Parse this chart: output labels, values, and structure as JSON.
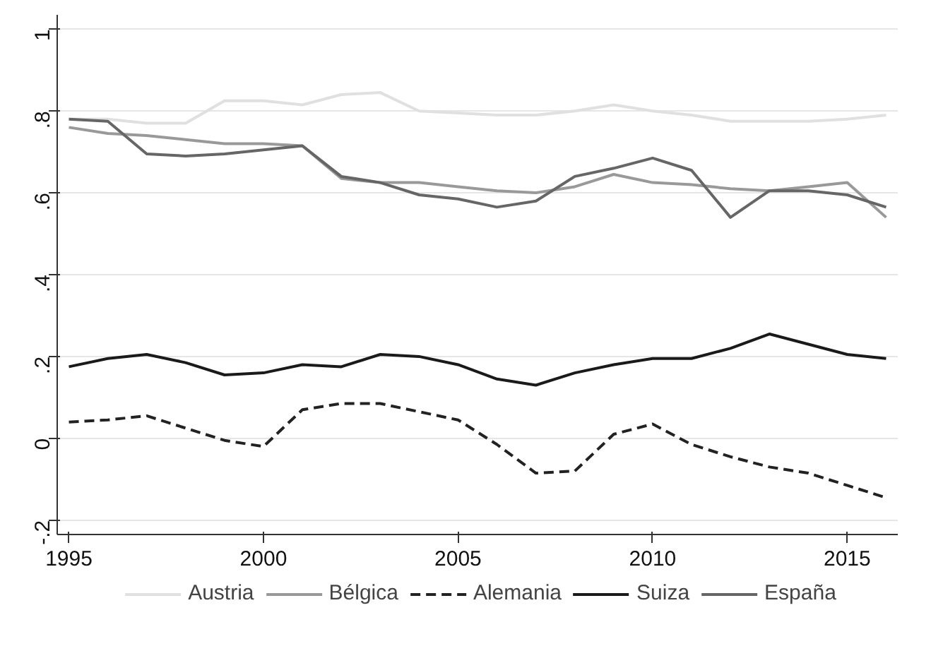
{
  "chart_data": {
    "type": "line",
    "x": [
      1995,
      1996,
      1997,
      1998,
      1999,
      2000,
      2001,
      2002,
      2003,
      2004,
      2005,
      2006,
      2007,
      2008,
      2009,
      2010,
      2011,
      2012,
      2013,
      2014,
      2015,
      2016
    ],
    "series": [
      {
        "name": "Austria",
        "color": "#e0e0e0",
        "line_style": "solid",
        "values": [
          0.78,
          0.78,
          0.77,
          0.77,
          0.825,
          0.825,
          0.815,
          0.84,
          0.845,
          0.8,
          0.795,
          0.79,
          0.79,
          0.8,
          0.815,
          0.8,
          0.79,
          0.775,
          0.775,
          0.775,
          0.78,
          0.79
        ]
      },
      {
        "name": "Bélgica",
        "color": "#999999",
        "line_style": "solid",
        "values": [
          0.76,
          0.745,
          0.74,
          0.73,
          0.72,
          0.72,
          0.715,
          0.635,
          0.625,
          0.625,
          0.615,
          0.605,
          0.6,
          0.615,
          0.645,
          0.625,
          0.62,
          0.61,
          0.605,
          0.615,
          0.625,
          0.54
        ]
      },
      {
        "name": "Alemania",
        "color": "#222222",
        "line_style": "dashed",
        "values": [
          0.04,
          0.045,
          0.055,
          0.025,
          -0.005,
          -0.02,
          0.07,
          0.085,
          0.085,
          0.065,
          0.045,
          -0.015,
          -0.085,
          -0.08,
          0.01,
          0.035,
          -0.015,
          -0.045,
          -0.07,
          -0.085,
          -0.115,
          -0.145
        ]
      },
      {
        "name": "Suiza",
        "color": "#1a1a1a",
        "line_style": "solid",
        "values": [
          0.175,
          0.195,
          0.205,
          0.185,
          0.155,
          0.16,
          0.18,
          0.175,
          0.205,
          0.2,
          0.18,
          0.145,
          0.13,
          0.16,
          0.18,
          0.195,
          0.195,
          0.22,
          0.255,
          0.23,
          0.205,
          0.195
        ]
      },
      {
        "name": "España",
        "color": "#666666",
        "line_style": "solid",
        "values": [
          0.78,
          0.775,
          0.695,
          0.69,
          0.695,
          0.705,
          0.715,
          0.64,
          0.625,
          0.595,
          0.585,
          0.565,
          0.58,
          0.64,
          0.66,
          0.685,
          0.655,
          0.54,
          0.605,
          0.605,
          0.595,
          0.565
        ]
      }
    ],
    "xlim": [
      1994.7,
      2016.3
    ],
    "ylim": [
      -0.235,
      1.035
    ],
    "xticks": [
      1995,
      2000,
      2005,
      2010,
      2015
    ],
    "yticks": [
      {
        "value": -0.2,
        "label": "-.2"
      },
      0,
      {
        "value": 0.2,
        "label": ".2"
      },
      {
        "value": 0.4,
        "label": ".4"
      },
      {
        "value": 0.6,
        "label": ".6"
      },
      {
        "value": 0.8,
        "label": ".8"
      },
      1
    ],
    "grid": "y",
    "legend": "bottom",
    "marker": "none"
  }
}
